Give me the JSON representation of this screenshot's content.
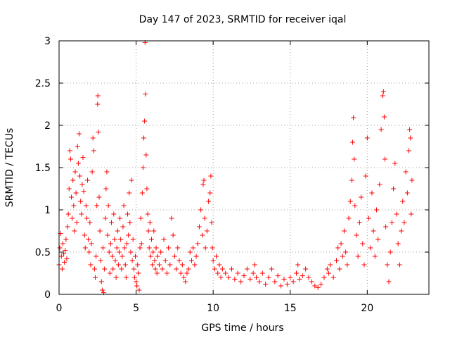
{
  "chart_data": {
    "type": "scatter",
    "title": "Day 147 of 2023, SRMTID for receiver iqal",
    "xlabel": "GPS time / hours",
    "ylabel": "SRMTID / TECUs",
    "xlim": [
      0,
      24
    ],
    "ylim": [
      0,
      3
    ],
    "xticks": [
      0,
      5,
      10,
      15,
      20
    ],
    "yticks": [
      0,
      0.5,
      1,
      1.5,
      2,
      2.5,
      3
    ],
    "xtick_labels": [
      "0",
      "5",
      "10",
      "15",
      "20"
    ],
    "ytick_labels": [
      "0",
      "0.5",
      "1",
      "1.5",
      "2",
      "2.5",
      "3"
    ],
    "grid": true,
    "marker": "+",
    "color": "#ff0000",
    "series": [
      {
        "name": "iqal",
        "points": [
          [
            0.0,
            0.35
          ],
          [
            0.05,
            0.55
          ],
          [
            0.1,
            0.72
          ],
          [
            0.15,
            0.45
          ],
          [
            0.2,
            0.3
          ],
          [
            0.25,
            0.6
          ],
          [
            0.3,
            0.48
          ],
          [
            0.35,
            0.38
          ],
          [
            0.4,
            0.52
          ],
          [
            0.45,
            0.65
          ],
          [
            0.5,
            0.42
          ],
          [
            0.55,
            0.8
          ],
          [
            0.6,
            0.95
          ],
          [
            0.65,
            1.25
          ],
          [
            0.7,
            1.7
          ],
          [
            0.75,
            1.6
          ],
          [
            0.8,
            1.15
          ],
          [
            0.85,
            0.9
          ],
          [
            0.9,
            1.35
          ],
          [
            0.95,
            1.05
          ],
          [
            1.0,
            0.75
          ],
          [
            1.05,
            1.45
          ],
          [
            1.1,
            1.2
          ],
          [
            1.15,
            0.85
          ],
          [
            1.2,
            1.75
          ],
          [
            1.25,
            1.55
          ],
          [
            1.3,
            1.9
          ],
          [
            1.35,
            1.4
          ],
          [
            1.4,
            1.1
          ],
          [
            1.45,
            0.95
          ],
          [
            1.5,
            1.3
          ],
          [
            1.55,
            1.62
          ],
          [
            1.6,
            1.22
          ],
          [
            1.65,
            0.7
          ],
          [
            1.7,
            0.55
          ],
          [
            1.75,
            1.05
          ],
          [
            1.8,
            0.9
          ],
          [
            1.85,
            1.35
          ],
          [
            1.9,
            0.65
          ],
          [
            1.95,
            0.5
          ],
          [
            2.0,
            0.85
          ],
          [
            2.05,
            0.35
          ],
          [
            2.1,
            0.6
          ],
          [
            2.15,
            1.45
          ],
          [
            2.2,
            1.85
          ],
          [
            2.25,
            1.7
          ],
          [
            2.3,
            0.3
          ],
          [
            2.35,
            0.2
          ],
          [
            2.4,
            0.45
          ],
          [
            2.45,
            1.05
          ],
          [
            2.5,
            2.25
          ],
          [
            2.52,
            2.35
          ],
          [
            2.55,
            1.92
          ],
          [
            2.6,
            1.15
          ],
          [
            2.65,
            0.75
          ],
          [
            2.7,
            0.4
          ],
          [
            2.75,
            0.15
          ],
          [
            2.8,
            0.05
          ],
          [
            2.85,
            0.55
          ],
          [
            2.9,
            0.02
          ],
          [
            2.95,
            0.3
          ],
          [
            3.0,
            0.9
          ],
          [
            3.05,
            1.25
          ],
          [
            3.1,
            1.45
          ],
          [
            3.15,
            0.7
          ],
          [
            3.2,
            1.05
          ],
          [
            3.25,
            0.5
          ],
          [
            3.3,
            0.25
          ],
          [
            3.35,
            0.6
          ],
          [
            3.4,
            0.85
          ],
          [
            3.45,
            0.45
          ],
          [
            3.5,
            0.3
          ],
          [
            3.55,
            0.95
          ],
          [
            3.6,
            0.65
          ],
          [
            3.65,
            0.4
          ],
          [
            3.7,
            0.2
          ],
          [
            3.75,
            0.55
          ],
          [
            3.8,
            0.75
          ],
          [
            3.85,
            0.35
          ],
          [
            3.9,
            0.5
          ],
          [
            3.95,
            0.9
          ],
          [
            4.0,
            0.65
          ],
          [
            4.05,
            0.3
          ],
          [
            4.1,
            0.45
          ],
          [
            4.15,
            0.8
          ],
          [
            4.2,
            1.05
          ],
          [
            4.25,
            0.55
          ],
          [
            4.3,
            0.35
          ],
          [
            4.35,
            0.2
          ],
          [
            4.4,
            0.6
          ],
          [
            4.45,
            0.95
          ],
          [
            4.5,
            0.7
          ],
          [
            4.55,
            1.2
          ],
          [
            4.6,
            0.85
          ],
          [
            4.65,
            0.5
          ],
          [
            4.7,
            1.35
          ],
          [
            4.75,
            0.4
          ],
          [
            4.8,
            0.65
          ],
          [
            4.85,
            0.3
          ],
          [
            4.9,
            0.2
          ],
          [
            4.95,
            0.45
          ],
          [
            5.0,
            0.15
          ],
          [
            5.05,
            0.1
          ],
          [
            5.1,
            0.35
          ],
          [
            5.15,
            0.25
          ],
          [
            5.2,
            0.05
          ],
          [
            5.25,
            0.55
          ],
          [
            5.3,
            0.9
          ],
          [
            5.35,
            0.6
          ],
          [
            5.4,
            1.2
          ],
          [
            5.45,
            1.5
          ],
          [
            5.5,
            1.85
          ],
          [
            5.55,
            2.05
          ],
          [
            5.58,
            2.98
          ],
          [
            5.6,
            2.37
          ],
          [
            5.65,
            1.65
          ],
          [
            5.7,
            1.25
          ],
          [
            5.75,
            0.95
          ],
          [
            5.8,
            0.75
          ],
          [
            5.85,
            0.55
          ],
          [
            5.9,
            0.85
          ],
          [
            5.95,
            0.45
          ],
          [
            6.0,
            0.65
          ],
          [
            6.05,
            0.35
          ],
          [
            6.1,
            0.5
          ],
          [
            6.15,
            0.75
          ],
          [
            6.2,
            0.4
          ],
          [
            6.25,
            0.3
          ],
          [
            6.3,
            0.55
          ],
          [
            6.35,
            0.25
          ],
          [
            6.4,
            0.45
          ],
          [
            6.5,
            0.35
          ],
          [
            6.6,
            0.5
          ],
          [
            6.7,
            0.3
          ],
          [
            6.8,
            0.65
          ],
          [
            6.9,
            0.4
          ],
          [
            7.0,
            0.25
          ],
          [
            7.1,
            0.55
          ],
          [
            7.2,
            0.35
          ],
          [
            7.3,
            0.9
          ],
          [
            7.4,
            0.7
          ],
          [
            7.5,
            0.45
          ],
          [
            7.6,
            0.3
          ],
          [
            7.7,
            0.55
          ],
          [
            7.8,
            0.4
          ],
          [
            7.9,
            0.25
          ],
          [
            8.0,
            0.35
          ],
          [
            8.1,
            0.2
          ],
          [
            8.2,
            0.15
          ],
          [
            8.3,
            0.25
          ],
          [
            8.4,
            0.3
          ],
          [
            8.5,
            0.5
          ],
          [
            8.6,
            0.4
          ],
          [
            8.7,
            0.55
          ],
          [
            8.8,
            0.35
          ],
          [
            8.9,
            0.45
          ],
          [
            9.0,
            0.6
          ],
          [
            9.1,
            0.8
          ],
          [
            9.2,
            1.0
          ],
          [
            9.3,
            0.7
          ],
          [
            9.35,
            1.3
          ],
          [
            9.4,
            1.35
          ],
          [
            9.45,
            0.9
          ],
          [
            9.5,
            0.55
          ],
          [
            9.6,
            0.75
          ],
          [
            9.7,
            1.1
          ],
          [
            9.8,
            1.2
          ],
          [
            9.85,
            1.4
          ],
          [
            9.9,
            0.85
          ],
          [
            9.95,
            0.55
          ],
          [
            10.0,
            0.4
          ],
          [
            10.1,
            0.3
          ],
          [
            10.2,
            0.45
          ],
          [
            10.3,
            0.25
          ],
          [
            10.4,
            0.35
          ],
          [
            10.5,
            0.2
          ],
          [
            10.6,
            0.3
          ],
          [
            10.8,
            0.25
          ],
          [
            11.0,
            0.2
          ],
          [
            11.2,
            0.3
          ],
          [
            11.4,
            0.18
          ],
          [
            11.6,
            0.25
          ],
          [
            11.8,
            0.15
          ],
          [
            12.0,
            0.22
          ],
          [
            12.2,
            0.3
          ],
          [
            12.4,
            0.18
          ],
          [
            12.6,
            0.25
          ],
          [
            12.7,
            0.35
          ],
          [
            12.8,
            0.2
          ],
          [
            13.0,
            0.15
          ],
          [
            13.2,
            0.25
          ],
          [
            13.4,
            0.12
          ],
          [
            13.6,
            0.2
          ],
          [
            13.8,
            0.3
          ],
          [
            14.0,
            0.15
          ],
          [
            14.2,
            0.22
          ],
          [
            14.4,
            0.1
          ],
          [
            14.6,
            0.18
          ],
          [
            14.8,
            0.12
          ],
          [
            15.0,
            0.2
          ],
          [
            15.2,
            0.15
          ],
          [
            15.4,
            0.25
          ],
          [
            15.5,
            0.35
          ],
          [
            15.6,
            0.18
          ],
          [
            15.8,
            0.22
          ],
          [
            16.0,
            0.3
          ],
          [
            16.2,
            0.2
          ],
          [
            16.4,
            0.15
          ],
          [
            16.6,
            0.1
          ],
          [
            16.8,
            0.08
          ],
          [
            17.0,
            0.12
          ],
          [
            17.2,
            0.2
          ],
          [
            17.4,
            0.3
          ],
          [
            17.5,
            0.25
          ],
          [
            17.6,
            0.35
          ],
          [
            17.8,
            0.2
          ],
          [
            18.0,
            0.4
          ],
          [
            18.1,
            0.55
          ],
          [
            18.2,
            0.3
          ],
          [
            18.3,
            0.6
          ],
          [
            18.4,
            0.45
          ],
          [
            18.5,
            0.75
          ],
          [
            18.6,
            0.5
          ],
          [
            18.7,
            0.35
          ],
          [
            18.8,
            0.9
          ],
          [
            18.9,
            1.1
          ],
          [
            19.0,
            1.35
          ],
          [
            19.05,
            1.8
          ],
          [
            19.1,
            2.09
          ],
          [
            19.15,
            1.6
          ],
          [
            19.2,
            1.05
          ],
          [
            19.3,
            0.7
          ],
          [
            19.4,
            0.45
          ],
          [
            19.5,
            0.85
          ],
          [
            19.6,
            1.15
          ],
          [
            19.7,
            0.6
          ],
          [
            19.8,
            0.35
          ],
          [
            19.9,
            1.4
          ],
          [
            20.0,
            1.85
          ],
          [
            20.1,
            0.9
          ],
          [
            20.2,
            0.55
          ],
          [
            20.3,
            1.2
          ],
          [
            20.4,
            0.75
          ],
          [
            20.5,
            0.45
          ],
          [
            20.6,
            1.0
          ],
          [
            20.7,
            0.65
          ],
          [
            20.8,
            1.3
          ],
          [
            20.9,
            1.95
          ],
          [
            21.0,
            2.35
          ],
          [
            21.05,
            2.4
          ],
          [
            21.1,
            2.1
          ],
          [
            21.15,
            1.6
          ],
          [
            21.2,
            0.8
          ],
          [
            21.3,
            0.35
          ],
          [
            21.4,
            0.15
          ],
          [
            21.5,
            0.5
          ],
          [
            21.6,
            0.85
          ],
          [
            21.7,
            1.25
          ],
          [
            21.8,
            1.55
          ],
          [
            21.9,
            0.95
          ],
          [
            22.0,
            0.6
          ],
          [
            22.1,
            0.35
          ],
          [
            22.2,
            0.75
          ],
          [
            22.3,
            1.1
          ],
          [
            22.4,
            0.85
          ],
          [
            22.5,
            1.45
          ],
          [
            22.6,
            1.2
          ],
          [
            22.7,
            1.7
          ],
          [
            22.75,
            1.95
          ],
          [
            22.8,
            1.85
          ],
          [
            22.85,
            0.95
          ],
          [
            22.9,
            1.35
          ]
        ]
      }
    ]
  }
}
